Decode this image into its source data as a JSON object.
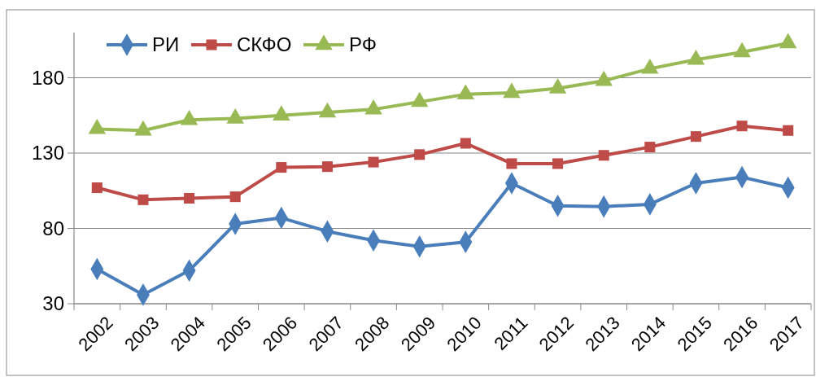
{
  "chart_data": {
    "type": "line",
    "categories": [
      "2002",
      "2003",
      "2004",
      "2005",
      "2006",
      "2007",
      "2008",
      "2009",
      "2010",
      "2011",
      "2012",
      "2013",
      "2014",
      "2015",
      "2016",
      "2017"
    ],
    "series": [
      {
        "name": "РИ",
        "color": "#4a7ebb",
        "marker": "diamond",
        "values": [
          53,
          36,
          52,
          83,
          87,
          78,
          72,
          68,
          71,
          110,
          95,
          94.5,
          96,
          110,
          114,
          107
        ]
      },
      {
        "name": "СКФО",
        "color": "#be4b48",
        "marker": "square",
        "values": [
          107,
          99,
          100,
          101,
          120.5,
          121,
          124,
          129,
          136.5,
          123,
          123,
          128.5,
          134,
          141,
          148,
          145
        ]
      },
      {
        "name": "РФ",
        "color": "#98b954",
        "marker": "triangle",
        "values": [
          146,
          145,
          152,
          153,
          155,
          157,
          159,
          164,
          169,
          170,
          173,
          178,
          186,
          192,
          197,
          203
        ]
      }
    ],
    "ylim": [
      30,
      210
    ],
    "yticks": [
      30,
      80,
      130,
      180
    ],
    "grid": "y",
    "legend": "top left",
    "line_style": "solid"
  }
}
